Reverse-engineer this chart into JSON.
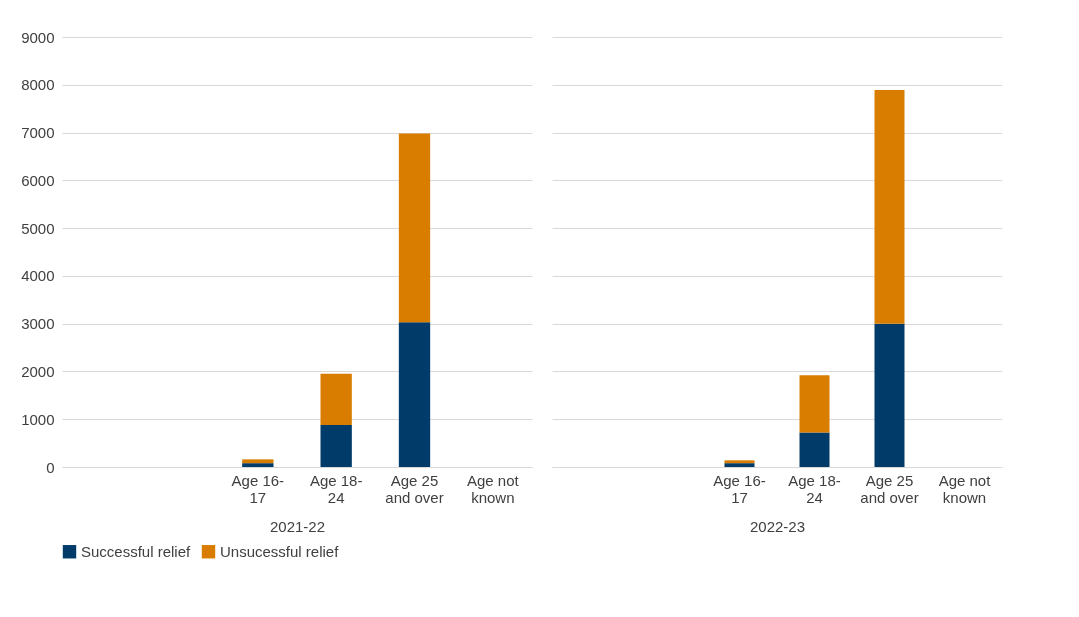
{
  "chart_data": [
    {
      "type": "bar",
      "stacked": true,
      "xlabel": "2021-22",
      "categories": [
        null,
        null,
        "Age 16-17",
        "Age 18-24",
        "Age 25 and over",
        "Age not known"
      ],
      "series": [
        {
          "name": "Successful relief",
          "color": "#003b69",
          "values": [
            null,
            null,
            80,
            880,
            3030,
            0
          ]
        },
        {
          "name": "Unsucessful relief",
          "color": "#d87d00",
          "values": [
            null,
            null,
            80,
            1070,
            3950,
            0
          ]
        }
      ],
      "ylim": [
        0,
        9000
      ],
      "yticks": [
        0,
        1000,
        2000,
        3000,
        4000,
        5000,
        6000,
        7000,
        8000,
        9000
      ],
      "grid": "y",
      "legend": "bottom"
    },
    {
      "type": "bar",
      "stacked": true,
      "xlabel": "2022-23",
      "categories": [
        null,
        null,
        "Age 16-17",
        "Age 18-24",
        "Age 25 and over",
        "Age not known"
      ],
      "series": [
        {
          "name": "Successful relief",
          "color": "#003b69",
          "values": [
            null,
            null,
            80,
            720,
            3000,
            0
          ]
        },
        {
          "name": "Unsucessful relief",
          "color": "#d87d00",
          "values": [
            null,
            null,
            60,
            1200,
            4890,
            0
          ]
        }
      ],
      "ylim": [
        0,
        9000
      ],
      "yticks": [
        0,
        1000,
        2000,
        3000,
        4000,
        5000,
        6000,
        7000,
        8000,
        9000
      ],
      "grid": "y",
      "legend": "bottom",
      "tick_labels": "x"
    }
  ]
}
